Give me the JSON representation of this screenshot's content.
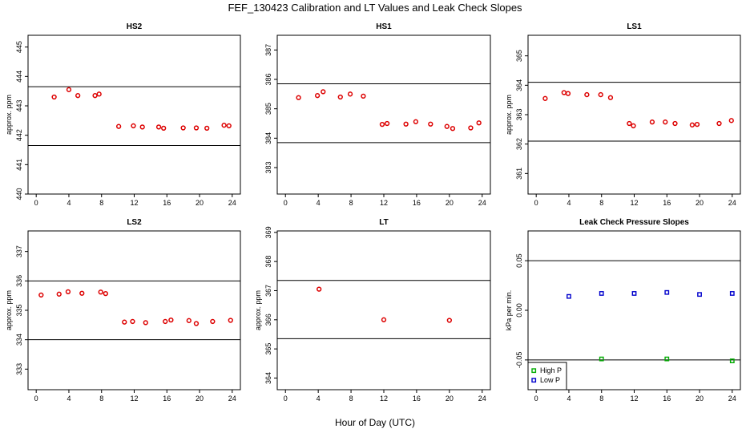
{
  "figure": {
    "title": "FEF_130423  Calibration and LT Values and Leak Check Slopes",
    "xlabel": "Hour of Day (UTC)"
  },
  "chart_data": [
    {
      "type": "scatter",
      "title": "HS2",
      "ylabel": "approx. ppm",
      "xlim": [
        -1,
        25
      ],
      "ylim": [
        440,
        445.4
      ],
      "xticks": [
        0,
        4,
        8,
        12,
        16,
        20,
        24
      ],
      "yticks": [
        440,
        441,
        442,
        443,
        444,
        445
      ],
      "hlines": [
        443.65,
        441.65
      ],
      "series": [
        {
          "color": "#dd0000",
          "marker": "circle",
          "x": [
            2.2,
            4.0,
            5.1,
            7.2,
            7.7,
            10.1,
            11.9,
            13.0,
            15.0,
            15.6,
            18.0,
            19.6,
            20.9,
            23.0,
            23.6
          ],
          "y": [
            443.3,
            443.55,
            443.35,
            443.35,
            443.4,
            442.3,
            442.32,
            442.28,
            442.28,
            442.24,
            442.25,
            442.25,
            442.24,
            442.34,
            442.32
          ]
        }
      ]
    },
    {
      "type": "scatter",
      "title": "HS1",
      "ylabel": "",
      "xlim": [
        -1,
        25
      ],
      "ylim": [
        382.1,
        387.5
      ],
      "xticks": [
        0,
        4,
        8,
        12,
        16,
        20,
        24
      ],
      "yticks": [
        383,
        384,
        385,
        386,
        387
      ],
      "hlines": [
        385.85,
        383.85
      ],
      "series": [
        {
          "color": "#dd0000",
          "marker": "circle",
          "x": [
            1.6,
            3.9,
            4.6,
            6.7,
            7.9,
            9.5,
            11.8,
            12.4,
            14.7,
            15.9,
            17.7,
            19.7,
            20.4,
            22.6,
            23.6
          ],
          "y": [
            385.38,
            385.45,
            385.58,
            385.4,
            385.5,
            385.43,
            384.47,
            384.5,
            384.48,
            384.56,
            384.48,
            384.4,
            384.33,
            384.35,
            384.52
          ]
        }
      ]
    },
    {
      "type": "scatter",
      "title": "LS1",
      "ylabel": "approx. ppm",
      "xlim": [
        -1,
        25
      ],
      "ylim": [
        360.3,
        365.7
      ],
      "xticks": [
        0,
        4,
        8,
        12,
        16,
        20,
        24
      ],
      "yticks": [
        361,
        362,
        363,
        364,
        365
      ],
      "hlines": [
        364.1,
        362.1
      ],
      "series": [
        {
          "color": "#dd0000",
          "marker": "circle",
          "x": [
            1.1,
            3.4,
            3.9,
            6.2,
            7.9,
            9.1,
            11.4,
            11.9,
            14.2,
            15.8,
            17.0,
            19.1,
            19.7,
            22.4,
            23.9
          ],
          "y": [
            363.55,
            363.75,
            363.72,
            363.68,
            363.68,
            363.58,
            362.7,
            362.62,
            362.75,
            362.75,
            362.7,
            362.65,
            362.67,
            362.7,
            362.8
          ]
        }
      ]
    },
    {
      "type": "scatter",
      "title": "LS2",
      "ylabel": "approx. ppm",
      "xlim": [
        -1,
        25
      ],
      "ylim": [
        332.3,
        337.7
      ],
      "xticks": [
        0,
        4,
        8,
        12,
        16,
        20,
        24
      ],
      "yticks": [
        333,
        334,
        335,
        336,
        337
      ],
      "hlines": [
        336.0,
        334.0
      ],
      "series": [
        {
          "color": "#dd0000",
          "marker": "circle",
          "x": [
            0.6,
            2.8,
            3.9,
            5.6,
            7.9,
            8.5,
            10.8,
            11.8,
            13.4,
            15.8,
            16.5,
            18.7,
            19.6,
            21.6,
            23.8
          ],
          "y": [
            335.52,
            335.55,
            335.63,
            335.58,
            335.62,
            335.57,
            334.6,
            334.62,
            334.58,
            334.62,
            334.67,
            334.65,
            334.55,
            334.62,
            334.66
          ]
        }
      ]
    },
    {
      "type": "scatter",
      "title": "LT",
      "ylabel": "approx. ppm",
      "xlim": [
        -1,
        25
      ],
      "ylim": [
        363.6,
        369.05
      ],
      "xticks": [
        0,
        4,
        8,
        12,
        16,
        20,
        24
      ],
      "yticks": [
        364,
        365,
        366,
        367,
        368,
        369
      ],
      "hlines": [
        367.35,
        365.35
      ],
      "series": [
        {
          "color": "#dd0000",
          "marker": "circle",
          "x": [
            4.1,
            12.0,
            20.0
          ],
          "y": [
            367.05,
            366.0,
            365.98
          ]
        }
      ]
    },
    {
      "type": "scatter",
      "title": "Leak Check Pressure Slopes",
      "ylabel": "kPa per min.",
      "xlim": [
        -1,
        25
      ],
      "ylim": [
        -0.08,
        0.08
      ],
      "xticks": [
        0,
        4,
        8,
        12,
        16,
        20,
        24
      ],
      "yticks": [
        -0.05,
        0.0,
        0.05
      ],
      "ytick_labels": [
        "-0.05",
        "0.00",
        "0.05"
      ],
      "hlines": [
        0.05,
        -0.05
      ],
      "legend": "bottom-left",
      "series": [
        {
          "name": "High P",
          "color": "#00aa00",
          "marker": "square",
          "x": [
            8.0,
            16.0,
            24.0
          ],
          "y": [
            -0.049,
            -0.049,
            -0.051
          ]
        },
        {
          "name": "Low P",
          "color": "#0000cc",
          "marker": "square",
          "x": [
            4.0,
            8.0,
            12.0,
            16.0,
            20.0,
            24.0
          ],
          "y": [
            0.014,
            0.017,
            0.017,
            0.018,
            0.016,
            0.017
          ]
        }
      ]
    }
  ]
}
